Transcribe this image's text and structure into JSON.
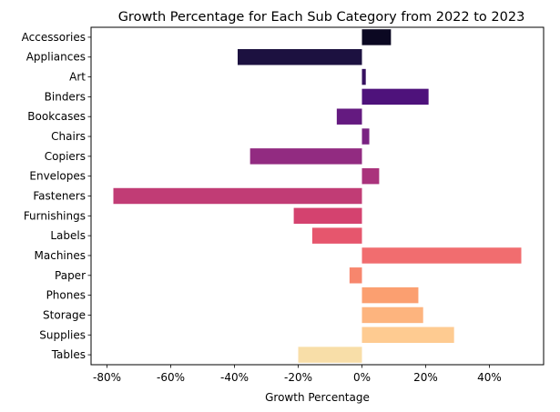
{
  "chart_data": {
    "type": "bar",
    "orientation": "horizontal",
    "title": "Growth Percentage for Each Sub Category from 2022 to 2023",
    "xlabel": "Growth Percentage",
    "ylabel": "",
    "xlim": [
      -85,
      57
    ],
    "x_ticks": [
      -80,
      -60,
      -40,
      -20,
      0,
      20,
      40
    ],
    "x_tick_labels": [
      "-80%",
      "-60%",
      "-40%",
      "-20%",
      "0%",
      "20%",
      "40%"
    ],
    "grid": false,
    "legend": "none",
    "categories": [
      "Accessories",
      "Appliances",
      "Art",
      "Binders",
      "Bookcases",
      "Chairs",
      "Copiers",
      "Envelopes",
      "Fasteners",
      "Furnishings",
      "Labels",
      "Machines",
      "Paper",
      "Phones",
      "Storage",
      "Supplies",
      "Tables"
    ],
    "values": [
      9.1,
      -39.0,
      1.2,
      20.9,
      -7.9,
      2.3,
      -35.1,
      5.4,
      -78.0,
      -21.4,
      -15.6,
      50.0,
      -3.9,
      17.7,
      19.2,
      28.9,
      -20.0
    ],
    "colors": [
      "#0b0822",
      "#1c1140",
      "#361060",
      "#4e127b",
      "#641a80",
      "#7a2382",
      "#922b81",
      "#aa337c",
      "#c13c75",
      "#d4426f",
      "#e6566d",
      "#f16d6f",
      "#f7866d",
      "#fb9f70",
      "#fdb47e",
      "#fecb91",
      "#f8dea8"
    ]
  }
}
